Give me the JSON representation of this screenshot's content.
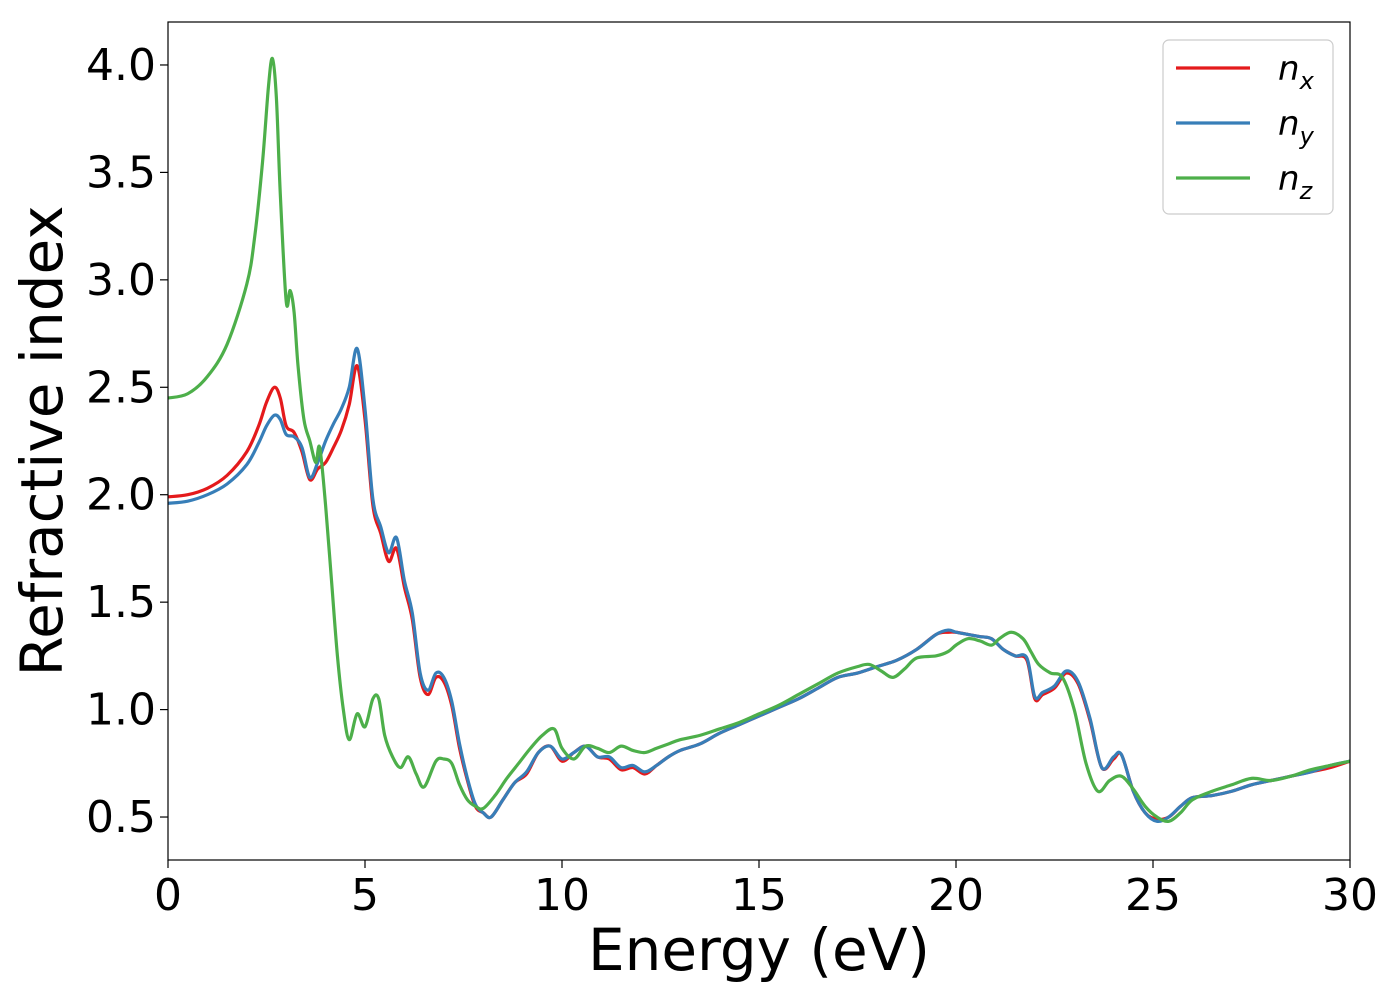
{
  "chart_data": {
    "type": "line",
    "xlabel": "Energy (eV)",
    "ylabel": "Refractive index",
    "xlim": [
      0,
      30
    ],
    "ylim": [
      0.3,
      4.2
    ],
    "xticks": [
      0,
      5,
      10,
      15,
      20,
      25,
      30
    ],
    "xtick_labels": [
      "0",
      "5",
      "10",
      "15",
      "20",
      "25",
      "30"
    ],
    "yticks": [
      0.5,
      1.0,
      1.5,
      2.0,
      2.5,
      3.0,
      3.5,
      4.0
    ],
    "ytick_labels": [
      "0.5",
      "1.0",
      "1.5",
      "2.0",
      "2.5",
      "3.0",
      "3.5",
      "4.0"
    ],
    "grid": false,
    "legend_position": "top-right",
    "series": [
      {
        "name": "n_x",
        "legend_base": "n",
        "legend_sub": "x",
        "color": "#e41a1c",
        "x": [
          0,
          0.5,
          1.0,
          1.5,
          2.0,
          2.3,
          2.5,
          2.7,
          2.85,
          3.0,
          3.2,
          3.4,
          3.6,
          3.8,
          4.0,
          4.2,
          4.4,
          4.6,
          4.8,
          5.0,
          5.2,
          5.4,
          5.6,
          5.8,
          6.0,
          6.2,
          6.4,
          6.6,
          6.8,
          7.0,
          7.2,
          7.4,
          7.6,
          7.8,
          8.0,
          8.2,
          8.5,
          8.8,
          9.1,
          9.4,
          9.7,
          10.0,
          10.3,
          10.6,
          10.9,
          11.2,
          11.5,
          11.8,
          12.1,
          12.4,
          12.7,
          13.0,
          13.5,
          14.0,
          14.5,
          15.0,
          15.5,
          16.0,
          16.5,
          17.0,
          17.5,
          18.0,
          18.5,
          19.0,
          19.5,
          19.8,
          20.0,
          20.3,
          20.6,
          20.9,
          21.2,
          21.5,
          21.8,
          22.0,
          22.2,
          22.5,
          22.8,
          23.1,
          23.4,
          23.7,
          24.0,
          24.2,
          24.5,
          24.8,
          25.1,
          25.4,
          25.7,
          26.0,
          26.5,
          27.0,
          27.5,
          28.0,
          28.5,
          29.0,
          29.5,
          30.0
        ],
        "values": [
          1.99,
          2.0,
          2.03,
          2.09,
          2.2,
          2.32,
          2.43,
          2.5,
          2.45,
          2.32,
          2.29,
          2.2,
          2.07,
          2.12,
          2.15,
          2.22,
          2.3,
          2.42,
          2.6,
          2.35,
          1.95,
          1.82,
          1.69,
          1.75,
          1.57,
          1.42,
          1.15,
          1.07,
          1.15,
          1.13,
          1.02,
          0.82,
          0.67,
          0.55,
          0.52,
          0.5,
          0.58,
          0.66,
          0.7,
          0.8,
          0.83,
          0.76,
          0.8,
          0.83,
          0.78,
          0.77,
          0.72,
          0.73,
          0.7,
          0.74,
          0.78,
          0.81,
          0.84,
          0.89,
          0.93,
          0.97,
          1.01,
          1.05,
          1.1,
          1.15,
          1.17,
          1.2,
          1.23,
          1.28,
          1.35,
          1.36,
          1.36,
          1.35,
          1.34,
          1.33,
          1.28,
          1.25,
          1.23,
          1.05,
          1.07,
          1.1,
          1.17,
          1.12,
          0.95,
          0.73,
          0.77,
          0.79,
          0.62,
          0.52,
          0.49,
          0.5,
          0.55,
          0.59,
          0.6,
          0.62,
          0.65,
          0.67,
          0.69,
          0.71,
          0.73,
          0.76
        ]
      },
      {
        "name": "n_y",
        "legend_base": "n",
        "legend_sub": "y",
        "color": "#377eb8",
        "x": [
          0,
          0.5,
          1.0,
          1.5,
          2.0,
          2.3,
          2.5,
          2.7,
          2.85,
          3.0,
          3.2,
          3.4,
          3.6,
          3.8,
          4.0,
          4.2,
          4.4,
          4.6,
          4.8,
          5.0,
          5.2,
          5.4,
          5.6,
          5.8,
          6.0,
          6.2,
          6.4,
          6.6,
          6.8,
          7.0,
          7.2,
          7.4,
          7.6,
          7.8,
          8.0,
          8.2,
          8.5,
          8.8,
          9.1,
          9.4,
          9.7,
          10.0,
          10.3,
          10.6,
          10.9,
          11.2,
          11.5,
          11.8,
          12.1,
          12.4,
          12.7,
          13.0,
          13.5,
          14.0,
          14.5,
          15.0,
          15.5,
          16.0,
          16.5,
          17.0,
          17.5,
          18.0,
          18.5,
          19.0,
          19.5,
          19.8,
          20.0,
          20.3,
          20.6,
          20.9,
          21.2,
          21.5,
          21.8,
          22.0,
          22.2,
          22.5,
          22.8,
          23.1,
          23.4,
          23.7,
          24.0,
          24.2,
          24.5,
          24.8,
          25.1,
          25.4,
          25.7,
          26.0,
          26.5,
          27.0,
          27.5,
          28.0,
          28.5,
          29.0,
          29.5,
          30.0
        ],
        "values": [
          1.96,
          1.97,
          2.0,
          2.05,
          2.14,
          2.24,
          2.32,
          2.37,
          2.35,
          2.28,
          2.27,
          2.22,
          2.08,
          2.15,
          2.25,
          2.33,
          2.4,
          2.5,
          2.68,
          2.4,
          1.98,
          1.85,
          1.73,
          1.8,
          1.6,
          1.45,
          1.17,
          1.09,
          1.17,
          1.15,
          1.04,
          0.84,
          0.68,
          0.56,
          0.52,
          0.5,
          0.58,
          0.66,
          0.71,
          0.8,
          0.83,
          0.77,
          0.8,
          0.83,
          0.78,
          0.78,
          0.73,
          0.74,
          0.71,
          0.74,
          0.78,
          0.81,
          0.84,
          0.89,
          0.93,
          0.97,
          1.01,
          1.05,
          1.1,
          1.15,
          1.17,
          1.2,
          1.23,
          1.28,
          1.35,
          1.37,
          1.36,
          1.35,
          1.34,
          1.33,
          1.28,
          1.25,
          1.24,
          1.06,
          1.08,
          1.11,
          1.18,
          1.13,
          0.96,
          0.73,
          0.78,
          0.79,
          0.62,
          0.52,
          0.48,
          0.5,
          0.55,
          0.59,
          0.6,
          0.62,
          0.65,
          0.67,
          0.69,
          0.71,
          0.74,
          0.76
        ]
      },
      {
        "name": "n_z",
        "legend_base": "n",
        "legend_sub": "z",
        "color": "#4daf4a",
        "x": [
          0,
          0.5,
          1.0,
          1.5,
          2.0,
          2.2,
          2.4,
          2.55,
          2.65,
          2.75,
          2.85,
          3.0,
          3.1,
          3.2,
          3.3,
          3.45,
          3.6,
          3.75,
          3.85,
          4.0,
          4.15,
          4.3,
          4.45,
          4.6,
          4.8,
          5.0,
          5.2,
          5.35,
          5.5,
          5.7,
          5.9,
          6.1,
          6.3,
          6.5,
          6.8,
          7.0,
          7.2,
          7.4,
          7.6,
          7.8,
          8.0,
          8.3,
          8.6,
          8.9,
          9.2,
          9.5,
          9.8,
          10.0,
          10.3,
          10.6,
          10.9,
          11.2,
          11.5,
          11.8,
          12.1,
          12.4,
          12.7,
          13.0,
          13.5,
          14.0,
          14.5,
          15.0,
          15.5,
          16.0,
          16.5,
          17.0,
          17.5,
          17.8,
          18.1,
          18.4,
          18.7,
          19.0,
          19.5,
          19.8,
          20.0,
          20.3,
          20.6,
          20.9,
          21.1,
          21.4,
          21.7,
          21.9,
          22.1,
          22.4,
          22.7,
          23.0,
          23.3,
          23.6,
          23.9,
          24.2,
          24.5,
          24.8,
          25.1,
          25.4,
          25.7,
          26.0,
          26.5,
          27.0,
          27.5,
          28.0,
          28.5,
          29.0,
          29.5,
          30.0
        ],
        "values": [
          2.45,
          2.47,
          2.55,
          2.7,
          2.98,
          3.2,
          3.55,
          3.9,
          4.03,
          3.85,
          3.4,
          2.9,
          2.95,
          2.85,
          2.6,
          2.35,
          2.25,
          2.15,
          2.22,
          1.95,
          1.6,
          1.25,
          1.0,
          0.86,
          0.98,
          0.92,
          1.05,
          1.05,
          0.88,
          0.78,
          0.73,
          0.78,
          0.7,
          0.64,
          0.76,
          0.77,
          0.75,
          0.65,
          0.58,
          0.55,
          0.54,
          0.6,
          0.68,
          0.75,
          0.82,
          0.88,
          0.91,
          0.82,
          0.77,
          0.83,
          0.82,
          0.8,
          0.83,
          0.81,
          0.8,
          0.82,
          0.84,
          0.86,
          0.88,
          0.91,
          0.94,
          0.98,
          1.02,
          1.07,
          1.12,
          1.17,
          1.2,
          1.21,
          1.18,
          1.15,
          1.19,
          1.24,
          1.25,
          1.27,
          1.3,
          1.33,
          1.32,
          1.3,
          1.33,
          1.36,
          1.33,
          1.27,
          1.21,
          1.17,
          1.15,
          1.0,
          0.75,
          0.62,
          0.67,
          0.69,
          0.63,
          0.55,
          0.5,
          0.48,
          0.52,
          0.58,
          0.62,
          0.65,
          0.68,
          0.67,
          0.69,
          0.72,
          0.74,
          0.76
        ]
      }
    ]
  }
}
